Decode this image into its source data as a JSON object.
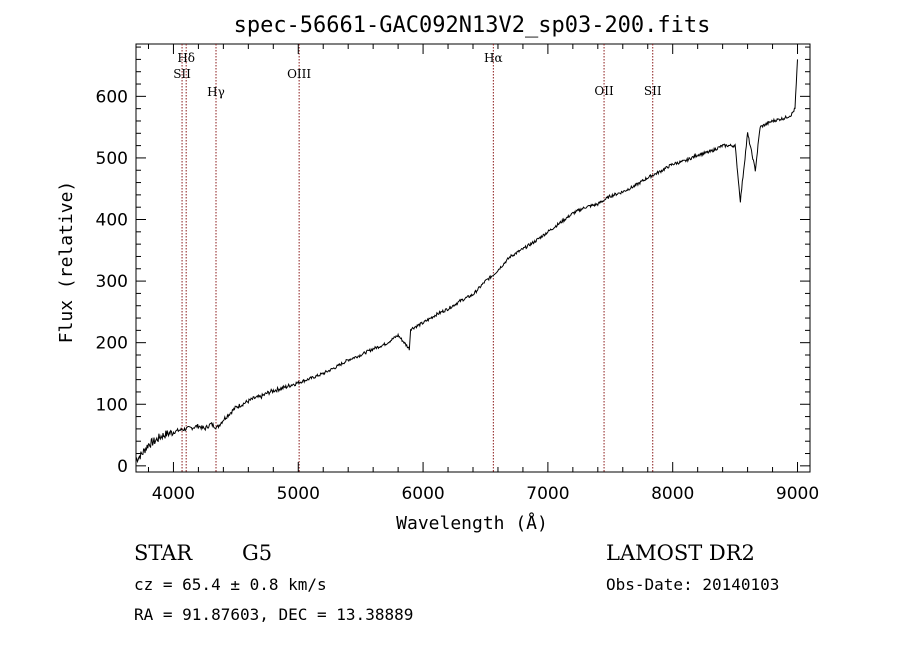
{
  "chart_data": {
    "type": "line",
    "title": "spec-56661-GAC092N13V2_sp03-200.fits",
    "xlabel": "Wavelength (Å)",
    "ylabel": "Flux (relative)",
    "xlim": [
      3700,
      9100
    ],
    "ylim": [
      -10,
      685
    ],
    "x_ticks": [
      4000,
      5000,
      6000,
      7000,
      8000,
      9000
    ],
    "y_ticks": [
      0,
      100,
      200,
      300,
      400,
      500,
      600
    ],
    "x_tick_labels": [
      "4000",
      "5000",
      "6000",
      "7000",
      "8000",
      "9000"
    ],
    "y_tick_labels": [
      "0",
      "100",
      "200",
      "300",
      "400",
      "500",
      "600"
    ],
    "grid": false,
    "series": [
      {
        "color": "#000000",
        "x": [
          3700,
          3750,
          3800,
          3850,
          3900,
          3950,
          4000,
          4050,
          4100,
          4150,
          4200,
          4250,
          4300,
          4350,
          4400,
          4450,
          4500,
          4550,
          4600,
          4650,
          4700,
          4750,
          4800,
          4850,
          4900,
          4950,
          5000,
          5100,
          5200,
          5300,
          5400,
          5500,
          5600,
          5700,
          5800,
          5890,
          5900,
          6000,
          6100,
          6200,
          6300,
          6400,
          6500,
          6563,
          6600,
          6700,
          6800,
          6900,
          7000,
          7100,
          7200,
          7300,
          7400,
          7500,
          7600,
          7700,
          7800,
          7900,
          8000,
          8100,
          8200,
          8300,
          8400,
          8500,
          8542,
          8600,
          8662,
          8700,
          8800,
          8900,
          8950,
          8980,
          9000
        ],
        "y": [
          10,
          20,
          35,
          40,
          48,
          52,
          55,
          58,
          60,
          62,
          65,
          60,
          68,
          62,
          75,
          85,
          95,
          100,
          105,
          110,
          112,
          118,
          122,
          125,
          128,
          132,
          135,
          142,
          150,
          160,
          172,
          180,
          190,
          198,
          212,
          190,
          222,
          232,
          245,
          255,
          268,
          278,
          300,
          310,
          318,
          340,
          352,
          365,
          380,
          395,
          410,
          420,
          425,
          438,
          445,
          455,
          468,
          478,
          490,
          495,
          505,
          510,
          520,
          520,
          430,
          540,
          480,
          550,
          560,
          565,
          570,
          580,
          660
        ]
      }
    ],
    "annotations": [
      {
        "label": "Hδ",
        "x": 4102
      },
      {
        "label": "SII",
        "x": 4069
      },
      {
        "label": "Hγ",
        "x": 4341
      },
      {
        "label": "OIII",
        "x": 5007
      },
      {
        "label": "Hα",
        "x": 6563
      },
      {
        "label": "OII",
        "x": 7450
      },
      {
        "label": "SII",
        "x": 7840
      }
    ]
  },
  "footer": {
    "object_class": "STAR",
    "subclass": "G5",
    "survey": "LAMOST DR2",
    "cz": "cz = 65.4 ± 0.8 km/s",
    "obs_date": "Obs-Date: 20140103",
    "coords": "RA =  91.87603, DEC =  13.38889"
  },
  "colors": {
    "line": "#000000",
    "marker_lines": "#8b1a1a",
    "background": "#ffffff"
  }
}
